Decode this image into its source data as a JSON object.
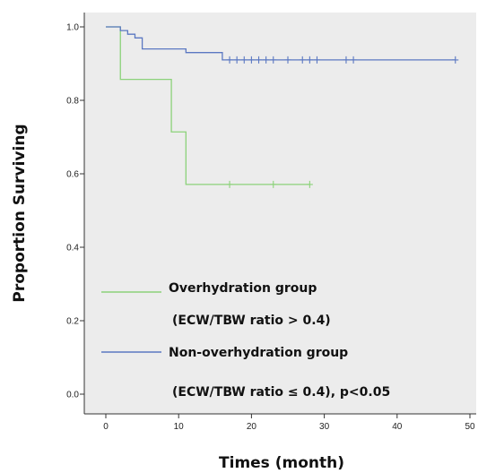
{
  "chart_data": {
    "type": "line",
    "subtype": "kaplan-meier",
    "xlabel": "Times (month)",
    "ylabel": "Proportion Surviving",
    "xlim": [
      0,
      50
    ],
    "ylim": [
      0,
      1.0
    ],
    "x_ticks": [
      "0",
      "10",
      "20",
      "30",
      "40",
      "50"
    ],
    "y_ticks": [
      "0.0",
      "0.2",
      "0.4",
      "0.6",
      "0.8",
      "1.0"
    ],
    "grid": false,
    "legend_position": "bottom-left",
    "colors": {
      "plot_background": "#ececec",
      "overhydration": "#8cd27a",
      "non_overhydration": "#5b78c2"
    },
    "series": [
      {
        "name": "Overhydration group",
        "legend_sub": "(ECW/TBW ratio > 0.4)",
        "color": "#8cd27a",
        "steps": [
          [
            0,
            1.0
          ],
          [
            2,
            0.857
          ],
          [
            9,
            0.714
          ],
          [
            11,
            0.571
          ],
          [
            28,
            0.571
          ]
        ],
        "censored": [
          [
            17,
            0.571
          ],
          [
            23,
            0.571
          ],
          [
            28,
            0.571
          ]
        ]
      },
      {
        "name": "Non-overhydration group",
        "legend_sub": "(ECW/TBW ratio ≤ 0.4),  p<0.05",
        "color": "#5b78c2",
        "steps": [
          [
            0,
            1.0
          ],
          [
            2,
            0.99
          ],
          [
            3,
            0.98
          ],
          [
            4,
            0.97
          ],
          [
            5,
            0.94
          ],
          [
            11,
            0.93
          ],
          [
            16,
            0.91
          ],
          [
            48,
            0.91
          ]
        ],
        "censored": [
          [
            17,
            0.91
          ],
          [
            18,
            0.91
          ],
          [
            19,
            0.91
          ],
          [
            20,
            0.91
          ],
          [
            21,
            0.91
          ],
          [
            22,
            0.91
          ],
          [
            23,
            0.91
          ],
          [
            25,
            0.91
          ],
          [
            27,
            0.91
          ],
          [
            28,
            0.91
          ],
          [
            29,
            0.91
          ],
          [
            33,
            0.91
          ],
          [
            34,
            0.91
          ],
          [
            48,
            0.91
          ]
        ]
      }
    ]
  }
}
